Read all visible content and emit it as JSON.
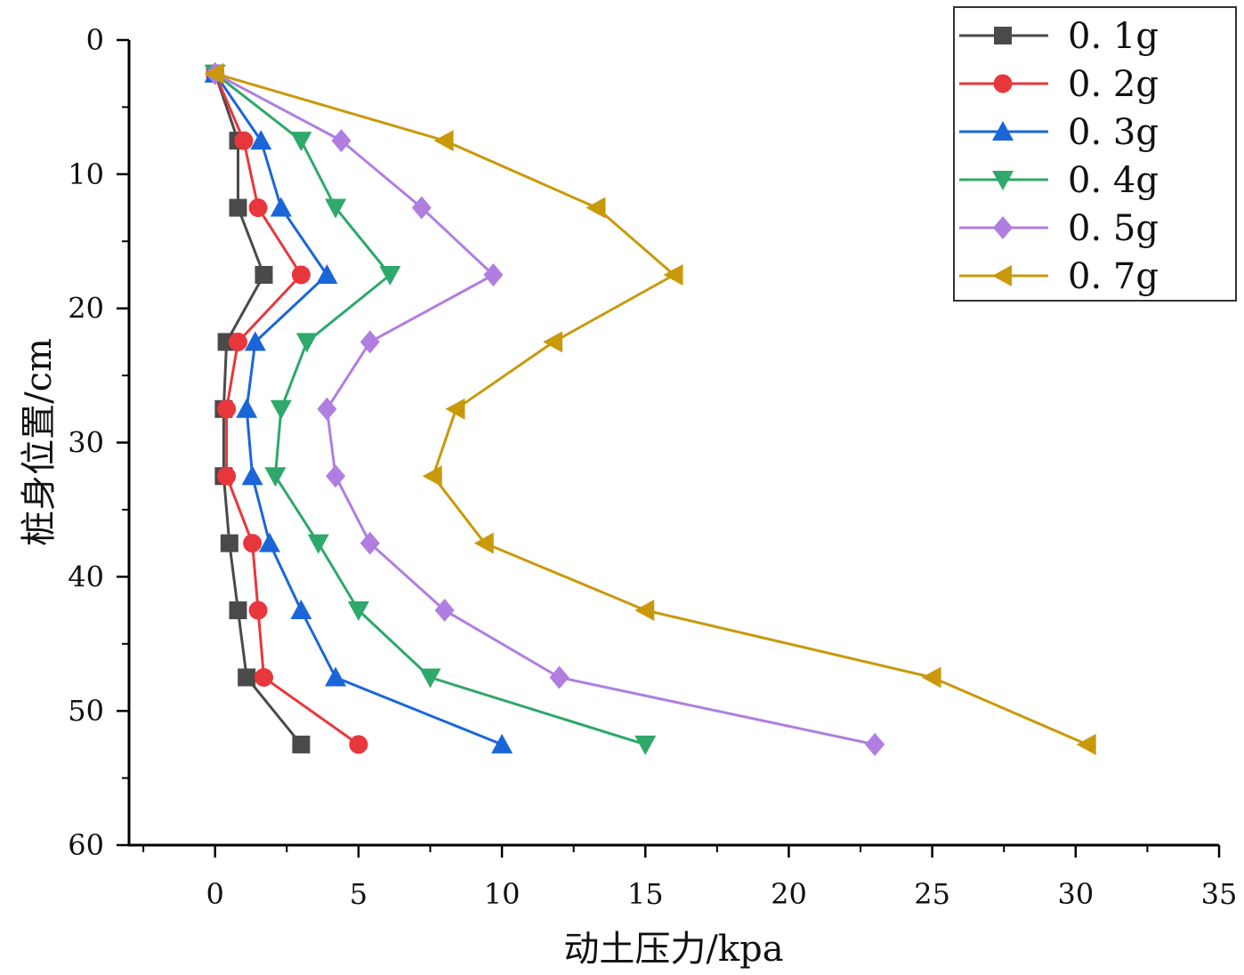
{
  "chart_data": {
    "type": "line",
    "orientation": "depth-profile",
    "title": "",
    "xlabel": "动土压力/kpa",
    "ylabel": "桩身位置/cm",
    "xlim": [
      -3,
      35
    ],
    "ylim": [
      0,
      60
    ],
    "y_inverted": true,
    "xticks": [
      0,
      5,
      10,
      15,
      20,
      25,
      30,
      35
    ],
    "yticks": [
      0,
      10,
      20,
      30,
      40,
      50,
      60
    ],
    "grid": false,
    "legend_position": "top-right",
    "depths": [
      2.5,
      7.5,
      12.5,
      17.5,
      22.5,
      27.5,
      32.5,
      37.5,
      42.5,
      47.5,
      52.5
    ],
    "series": [
      {
        "name": "0.1g",
        "color": "#4a4a4a",
        "marker": "square",
        "values": [
          0.0,
          0.8,
          0.8,
          1.7,
          0.4,
          0.3,
          0.3,
          0.5,
          0.8,
          1.1,
          3.0
        ]
      },
      {
        "name": "0.2g",
        "color": "#e8373c",
        "marker": "circle",
        "values": [
          0.0,
          1.0,
          1.5,
          3.0,
          0.8,
          0.4,
          0.4,
          1.3,
          1.5,
          1.7,
          5.0
        ]
      },
      {
        "name": "0.3g",
        "color": "#1a66d9",
        "marker": "triangle-up",
        "values": [
          0.0,
          1.6,
          2.3,
          3.9,
          1.4,
          1.1,
          1.3,
          1.9,
          3.0,
          4.2,
          10.0
        ]
      },
      {
        "name": "0.4g",
        "color": "#2ea86b",
        "marker": "triangle-down",
        "values": [
          0.0,
          3.0,
          4.2,
          6.1,
          3.2,
          2.3,
          2.1,
          3.6,
          5.0,
          7.5,
          15.0
        ]
      },
      {
        "name": "0.5g",
        "color": "#b07ee0",
        "marker": "diamond",
        "values": [
          0.0,
          4.4,
          7.2,
          9.7,
          5.4,
          3.9,
          4.2,
          5.4,
          8.0,
          12.0,
          23.0
        ]
      },
      {
        "name": "0.7g",
        "color": "#c9990a",
        "marker": "triangle-left",
        "values": [
          0.0,
          8.0,
          13.3,
          16.0,
          11.8,
          8.4,
          7.6,
          9.4,
          15.0,
          25.0,
          30.4
        ]
      }
    ]
  }
}
